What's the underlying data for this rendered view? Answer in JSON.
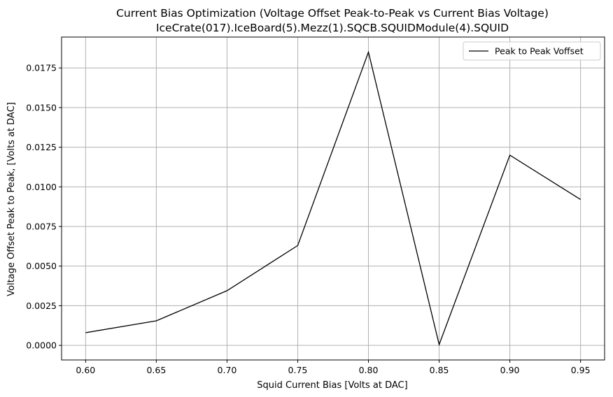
{
  "chart_data": {
    "type": "line",
    "title": "Current Bias Optimization (Voltage Offset Peak-to-Peak vs Current Bias Voltage)",
    "subtitle": "IceCrate(017).IceBoard(5).Mezz(1).SQCB.SQUIDModule(4).SQUID",
    "xlabel": "Squid Current Bias [Volts at DAC]",
    "ylabel": "Voltage Offset Peak to Peak, [Volts at DAC]",
    "xlim": [
      0.583,
      0.967
    ],
    "ylim": [
      -0.00092,
      0.01945
    ],
    "x_ticks": [
      0.6,
      0.65,
      0.7,
      0.75,
      0.8,
      0.85,
      0.9,
      0.95
    ],
    "x_tick_labels": [
      "0.60",
      "0.65",
      "0.70",
      "0.75",
      "0.80",
      "0.85",
      "0.90",
      "0.95"
    ],
    "y_ticks": [
      0.0,
      0.0025,
      0.005,
      0.0075,
      0.01,
      0.0125,
      0.015,
      0.0175
    ],
    "y_tick_labels": [
      "0.0000",
      "0.0025",
      "0.0050",
      "0.0075",
      "0.0100",
      "0.0125",
      "0.0150",
      "0.0175"
    ],
    "grid": true,
    "legend_position": "top-right",
    "series": [
      {
        "name": "Peak to Peak Voffset",
        "color": "#000000",
        "x": [
          0.6,
          0.65,
          0.7,
          0.75,
          0.8,
          0.85,
          0.9,
          0.95
        ],
        "y": [
          0.0008,
          0.00155,
          0.00345,
          0.0063,
          0.0185,
          5e-05,
          0.012,
          0.0092
        ]
      }
    ]
  }
}
